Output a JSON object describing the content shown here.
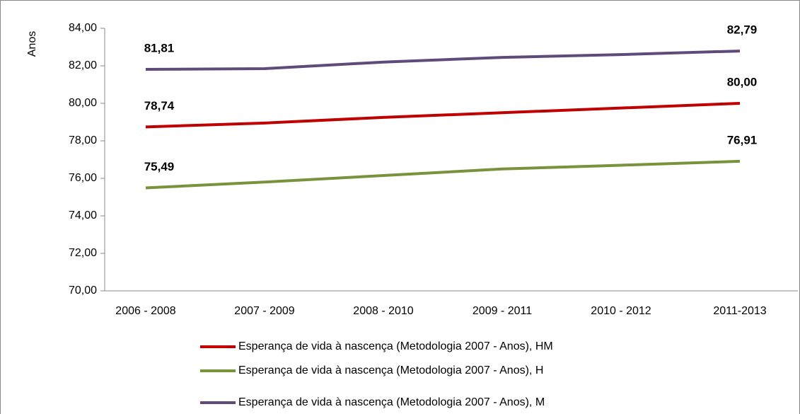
{
  "chart_data": {
    "type": "line",
    "y_label": "Anos",
    "categories": [
      "2006 - 2008",
      "2007 - 2009",
      "2008 - 2010",
      "2009 - 2011",
      "2010 - 2012",
      "2011-2013"
    ],
    "series": [
      {
        "name": "Esperança de vida à nascença (Metodologia 2007 - Anos), HM",
        "color": "#c00000",
        "values": [
          78.74,
          78.95,
          79.25,
          79.5,
          79.75,
          80.0
        ],
        "value_labels": [
          "78,74",
          null,
          null,
          null,
          null,
          "80,00"
        ]
      },
      {
        "name": "Esperança de vida à nascença (Metodologia 2007 - Anos), H",
        "color": "#77933c",
        "values": [
          75.49,
          75.8,
          76.15,
          76.5,
          76.7,
          76.91
        ],
        "value_labels": [
          "75,49",
          null,
          null,
          null,
          null,
          "76,91"
        ]
      },
      {
        "name": "Esperança de vida à nascença (Metodologia 2007 - Anos), M",
        "color": "#604a7b",
        "values": [
          81.81,
          81.85,
          82.2,
          82.45,
          82.6,
          82.79
        ],
        "value_labels": [
          "81,81",
          null,
          null,
          null,
          null,
          "82,79"
        ]
      }
    ],
    "ylim": [
      70,
      84
    ],
    "yticks": [
      {
        "value": 70,
        "label": "70,00"
      },
      {
        "value": 72,
        "label": "72,00"
      },
      {
        "value": 74,
        "label": "74,00"
      },
      {
        "value": 76,
        "label": "76,00"
      },
      {
        "value": 78,
        "label": "78,00"
      },
      {
        "value": 80,
        "label": "80,00"
      },
      {
        "value": 82,
        "label": "82,00"
      },
      {
        "value": 84,
        "label": "84,00"
      }
    ],
    "grid": false
  }
}
